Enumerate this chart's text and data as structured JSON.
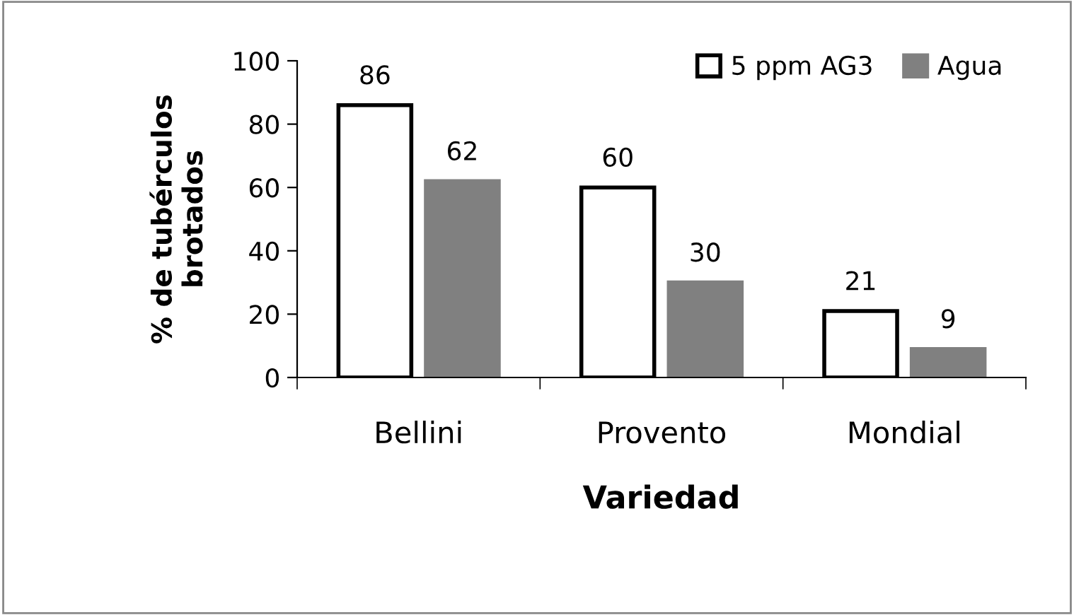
{
  "chart_data": {
    "type": "bar",
    "xlabel": "Variedad",
    "ylabel": "% de tubérculos\nbrotados",
    "categories": [
      "Bellini",
      "Provento",
      "Mondial"
    ],
    "series": [
      {
        "name": "5 ppm AG3",
        "color": "#ffffff",
        "values": [
          86,
          60,
          21
        ]
      },
      {
        "name": "Agua",
        "color": "#808080",
        "values": [
          62,
          30,
          9
        ]
      }
    ],
    "ylim": [
      0,
      100
    ],
    "yticks": [
      0,
      20,
      40,
      60,
      80,
      100
    ],
    "grid": false,
    "legend": "top right",
    "data_labels": true
  }
}
